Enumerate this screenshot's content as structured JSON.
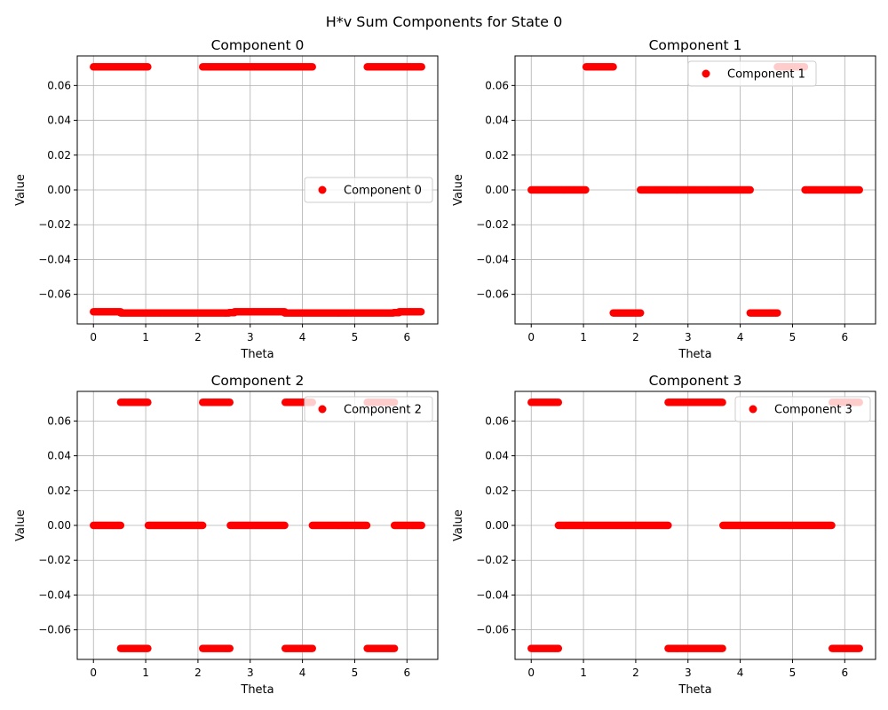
{
  "suptitle": "H*v Sum Components for State 0",
  "colors": {
    "marker": "#ff0000",
    "grid": "#b0b0b0",
    "axis": "#000000"
  },
  "chart_data": [
    {
      "type": "scatter",
      "title": "Component 0",
      "xlabel": "Theta",
      "ylabel": "Value",
      "legend": "Component 0",
      "legend_position": "center-right",
      "grid": true,
      "xlim": [
        -0.31,
        6.59
      ],
      "ylim": [
        -0.077,
        0.077
      ],
      "xticks": [
        "0",
        "1",
        "2",
        "3",
        "4",
        "5",
        "6"
      ],
      "yticks": [
        "−0.06",
        "−0.04",
        "−0.02",
        "0.00",
        "0.02",
        "0.04",
        "0.06"
      ],
      "segments": [
        {
          "x": [
            0.0,
            1.05
          ],
          "y": 0.0707
        },
        {
          "x": [
            2.09,
            4.19
          ],
          "y": 0.0707
        },
        {
          "x": [
            5.24,
            6.28
          ],
          "y": 0.0707
        },
        {
          "x": [
            0.0,
            0.52
          ],
          "y": -0.07
        },
        {
          "x": [
            0.52,
            2.6
          ],
          "y": -0.0707
        },
        {
          "x": [
            2.6,
            2.7
          ],
          "y": -0.0705
        },
        {
          "x": [
            2.7,
            3.66
          ],
          "y": -0.07
        },
        {
          "x": [
            3.66,
            5.75
          ],
          "y": -0.0707
        },
        {
          "x": [
            5.75,
            5.85
          ],
          "y": -0.0705
        },
        {
          "x": [
            5.85,
            6.28
          ],
          "y": -0.07
        }
      ]
    },
    {
      "type": "scatter",
      "title": "Component 1",
      "xlabel": "Theta",
      "ylabel": "Value",
      "legend": "Component 1",
      "legend_position": "upper-center",
      "grid": true,
      "xlim": [
        -0.31,
        6.59
      ],
      "ylim": [
        -0.077,
        0.077
      ],
      "xticks": [
        "0",
        "1",
        "2",
        "3",
        "4",
        "5",
        "6"
      ],
      "yticks": [
        "−0.06",
        "−0.04",
        "−0.02",
        "0.00",
        "0.02",
        "0.04",
        "0.06"
      ],
      "segments": [
        {
          "x": [
            0.0,
            1.05
          ],
          "y": 0.0
        },
        {
          "x": [
            1.05,
            1.57
          ],
          "y": 0.0707
        },
        {
          "x": [
            1.57,
            2.09
          ],
          "y": -0.0707
        },
        {
          "x": [
            2.09,
            4.19
          ],
          "y": 0.0
        },
        {
          "x": [
            4.19,
            4.71
          ],
          "y": -0.0707
        },
        {
          "x": [
            4.71,
            5.24
          ],
          "y": 0.0707
        },
        {
          "x": [
            5.24,
            6.28
          ],
          "y": 0.0
        }
      ]
    },
    {
      "type": "scatter",
      "title": "Component 2",
      "xlabel": "Theta",
      "ylabel": "Value",
      "legend": "Component 2",
      "legend_position": "upper-right",
      "grid": true,
      "xlim": [
        -0.31,
        6.59
      ],
      "ylim": [
        -0.077,
        0.077
      ],
      "xticks": [
        "0",
        "1",
        "2",
        "3",
        "4",
        "5",
        "6"
      ],
      "yticks": [
        "−0.06",
        "−0.04",
        "−0.02",
        "0.00",
        "0.02",
        "0.04",
        "0.06"
      ],
      "segments": [
        {
          "x": [
            0.0,
            0.52
          ],
          "y": 0.0
        },
        {
          "x": [
            0.52,
            1.05
          ],
          "y": 0.0707
        },
        {
          "x": [
            0.52,
            1.05
          ],
          "y": -0.0707
        },
        {
          "x": [
            1.05,
            2.09
          ],
          "y": 0.0
        },
        {
          "x": [
            2.09,
            2.62
          ],
          "y": 0.0707
        },
        {
          "x": [
            2.09,
            2.62
          ],
          "y": -0.0707
        },
        {
          "x": [
            2.62,
            3.67
          ],
          "y": 0.0
        },
        {
          "x": [
            3.67,
            4.19
          ],
          "y": 0.0707
        },
        {
          "x": [
            3.67,
            4.19
          ],
          "y": -0.0707
        },
        {
          "x": [
            4.19,
            5.24
          ],
          "y": 0.0
        },
        {
          "x": [
            5.24,
            5.76
          ],
          "y": 0.0707
        },
        {
          "x": [
            5.24,
            5.76
          ],
          "y": -0.0707
        },
        {
          "x": [
            5.76,
            6.28
          ],
          "y": 0.0
        }
      ]
    },
    {
      "type": "scatter",
      "title": "Component 3",
      "xlabel": "Theta",
      "ylabel": "Value",
      "legend": "Component 3",
      "legend_position": "upper-right",
      "grid": true,
      "xlim": [
        -0.31,
        6.59
      ],
      "ylim": [
        -0.077,
        0.077
      ],
      "xticks": [
        "0",
        "1",
        "2",
        "3",
        "4",
        "5",
        "6"
      ],
      "yticks": [
        "−0.06",
        "−0.04",
        "−0.02",
        "0.00",
        "0.02",
        "0.04",
        "0.06"
      ],
      "segments": [
        {
          "x": [
            0.0,
            0.52
          ],
          "y": 0.0707
        },
        {
          "x": [
            0.0,
            0.52
          ],
          "y": -0.0707
        },
        {
          "x": [
            0.52,
            2.62
          ],
          "y": 0.0
        },
        {
          "x": [
            2.62,
            3.67
          ],
          "y": 0.0707
        },
        {
          "x": [
            2.62,
            3.67
          ],
          "y": -0.0707
        },
        {
          "x": [
            3.67,
            5.76
          ],
          "y": 0.0
        },
        {
          "x": [
            5.76,
            6.28
          ],
          "y": 0.0707
        },
        {
          "x": [
            5.76,
            6.28
          ],
          "y": -0.0707
        }
      ]
    }
  ]
}
